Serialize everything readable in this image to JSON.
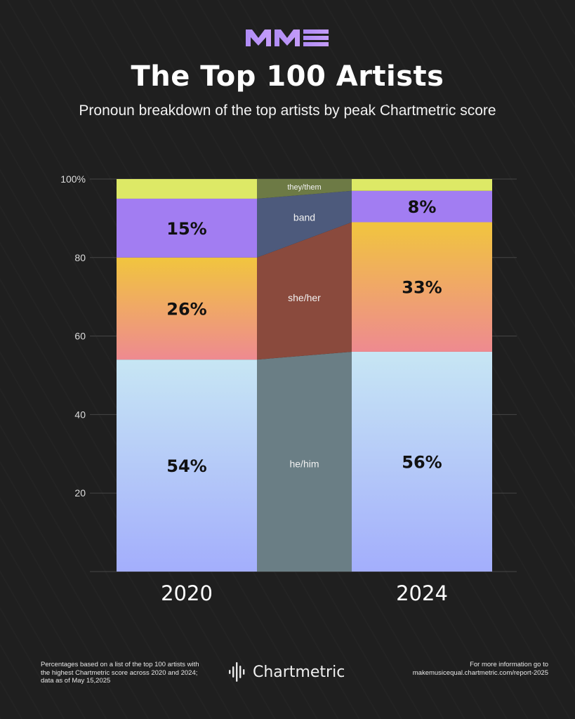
{
  "header": {
    "logo_text": "MME",
    "title": "The Top 100 Artists",
    "subtitle": "Pronoun breakdown of the top artists by peak Chartmetric score"
  },
  "chart_data": {
    "type": "bar",
    "stacked": true,
    "categories": [
      "2020",
      "2024"
    ],
    "ylim": [
      0,
      100
    ],
    "yticks": [
      {
        "value": 20,
        "label": "20"
      },
      {
        "value": 40,
        "label": "40"
      },
      {
        "value": 60,
        "label": "60"
      },
      {
        "value": 80,
        "label": "80"
      },
      {
        "value": 100,
        "label": "100%"
      }
    ],
    "grid": true,
    "series": [
      {
        "name": "he/him",
        "values": [
          54,
          56
        ],
        "labels": [
          "54%",
          "56%"
        ],
        "colors": [
          "#a3aefc",
          "#c7e6f4"
        ],
        "connector_color": "#6a7e85"
      },
      {
        "name": "she/her",
        "values": [
          26,
          33
        ],
        "labels": [
          "26%",
          "33%"
        ],
        "colors": [
          "#ee8a90",
          "#f1c53e"
        ],
        "connector_color": "#8a4a3d"
      },
      {
        "name": "band",
        "values": [
          15,
          8
        ],
        "labels": [
          "15%",
          "8%"
        ],
        "colors": [
          "#a27df2",
          "#a27df2"
        ],
        "connector_color": "#4d5a7c"
      },
      {
        "name": "they/them",
        "values": [
          5,
          3
        ],
        "labels": [
          "",
          ""
        ],
        "colors": [
          "#dde966",
          "#dde966"
        ],
        "connector_color": "#6d7a45"
      }
    ]
  },
  "footer": {
    "footnote": "Percentages based on a list of the top 100 artists with the highest Chartmetric score across 2020 and 2024; data as of May 15,2025",
    "brand": "Chartmetric",
    "more_info_line1": "For more information go to",
    "more_info_line2": "makemusicequal.chartmetric.com/report-2025"
  }
}
